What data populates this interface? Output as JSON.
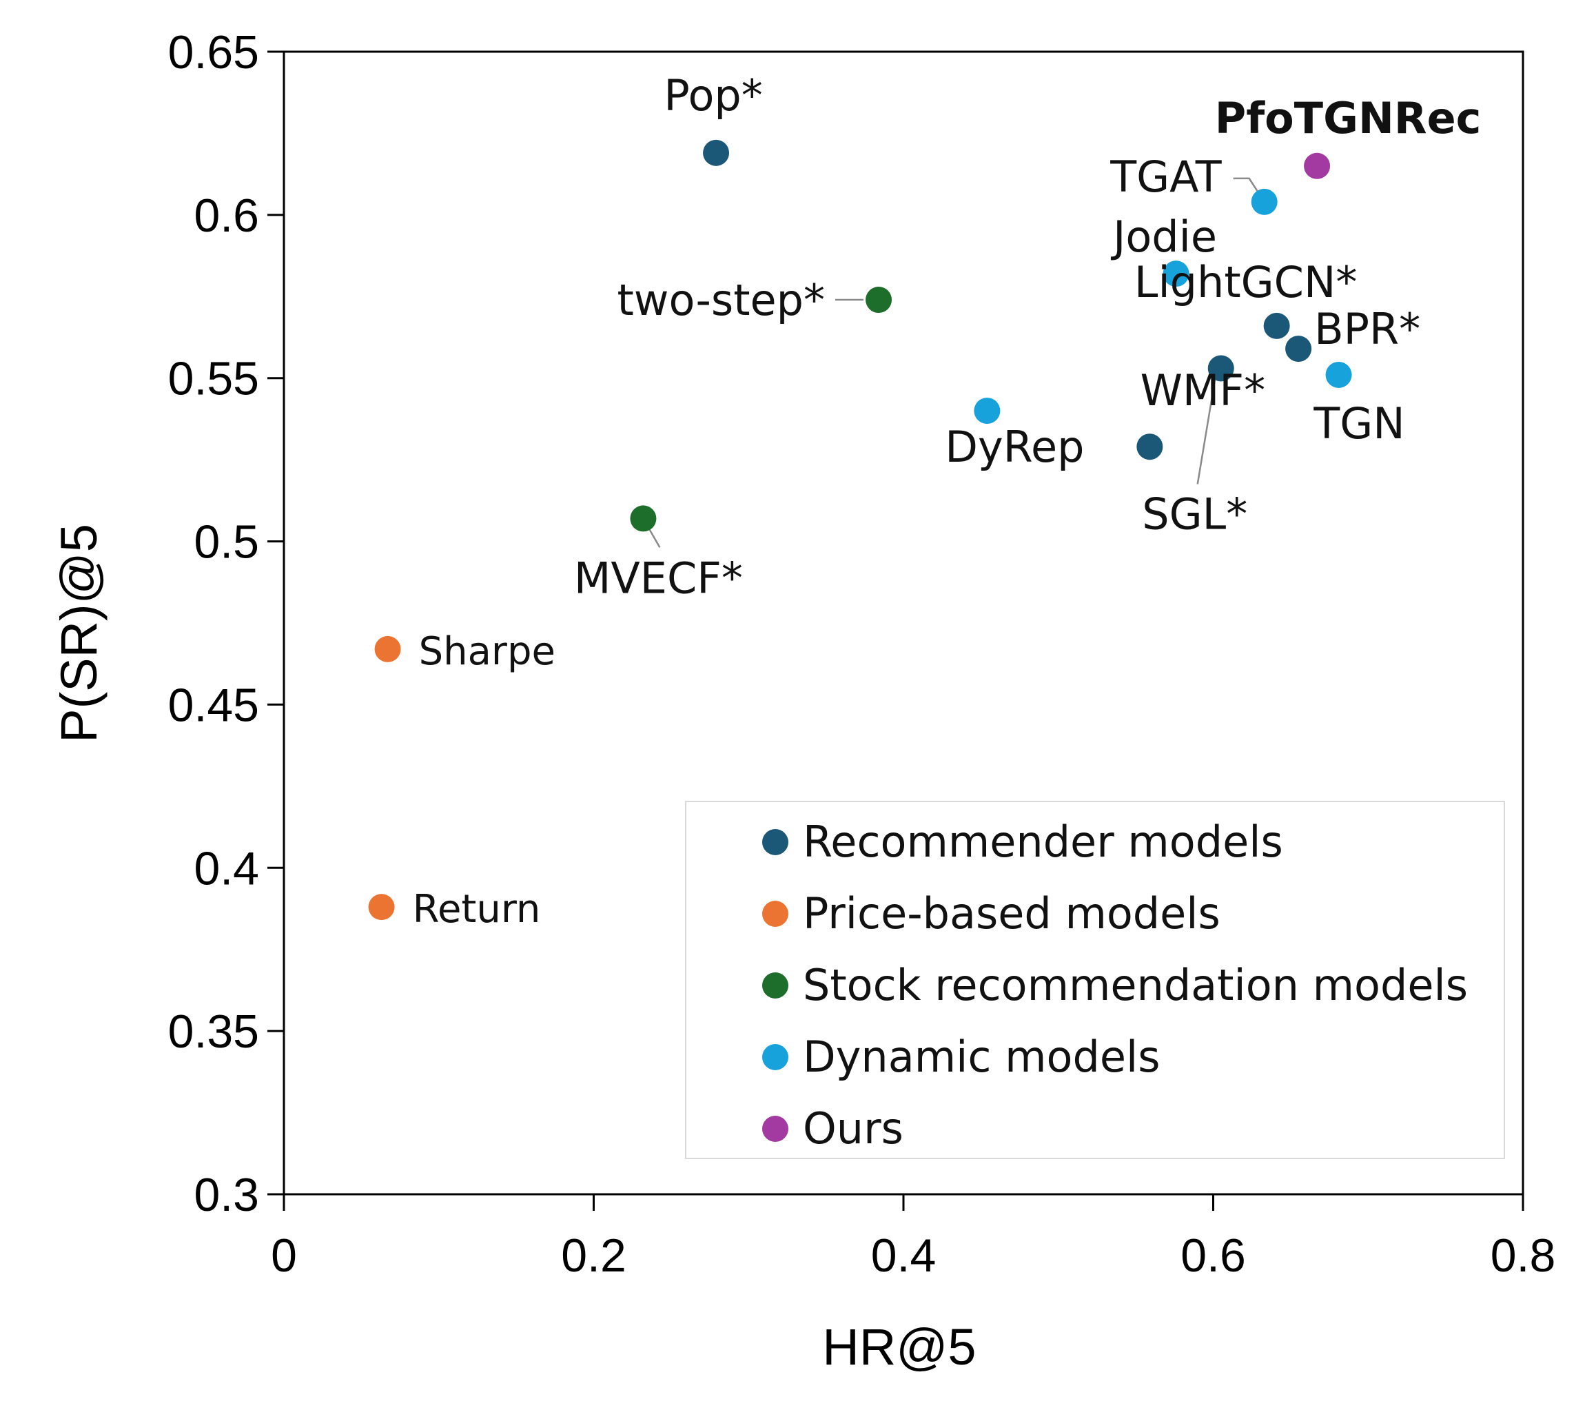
{
  "chart_data": {
    "type": "scatter",
    "xlabel": "HR@5",
    "ylabel": "P(SR)@5",
    "xlim": [
      0,
      0.8
    ],
    "ylim": [
      0.3,
      0.65
    ],
    "xticks": [
      "0",
      "0.2",
      "0.4",
      "0.6",
      "0.8"
    ],
    "yticks": [
      "0.3",
      "0.35",
      "0.4",
      "0.45",
      "0.5",
      "0.55",
      "0.6",
      "0.65"
    ],
    "grid": false,
    "legend_position": "bottom-right",
    "groups": [
      {
        "name": "Recommender models",
        "color": "#1b5877"
      },
      {
        "name": "Price-based models",
        "color": "#ec7433"
      },
      {
        "name": "Stock recommendation models",
        "color": "#1d6d2b"
      },
      {
        "name": "Dynamic models",
        "color": "#17a2dc"
      },
      {
        "name": "Ours",
        "color": "#a23aa1"
      }
    ],
    "points": [
      {
        "label": "Pop*",
        "group": 0,
        "x": 0.279,
        "y": 0.619
      },
      {
        "label": "LightGCN*",
        "group": 0,
        "x": 0.641,
        "y": 0.566
      },
      {
        "label": "BPR*",
        "group": 0,
        "x": 0.655,
        "y": 0.559
      },
      {
        "label": "SGL*",
        "group": 0,
        "x": 0.605,
        "y": 0.553
      },
      {
        "label": "WMF*",
        "group": 0,
        "x": 0.559,
        "y": 0.529
      },
      {
        "label": "Sharpe",
        "group": 1,
        "x": 0.067,
        "y": 0.467
      },
      {
        "label": "Return",
        "group": 1,
        "x": 0.063,
        "y": 0.388
      },
      {
        "label": "two-step*",
        "group": 2,
        "x": 0.384,
        "y": 0.574
      },
      {
        "label": "MVECF*",
        "group": 2,
        "x": 0.232,
        "y": 0.507
      },
      {
        "label": "TGAT",
        "group": 3,
        "x": 0.633,
        "y": 0.604
      },
      {
        "label": "Jodie",
        "group": 3,
        "x": 0.576,
        "y": 0.582
      },
      {
        "label": "TGN",
        "group": 3,
        "x": 0.681,
        "y": 0.551
      },
      {
        "label": "DyRep",
        "group": 3,
        "x": 0.454,
        "y": 0.54
      },
      {
        "label": "PfoTGNRec",
        "group": 4,
        "x": 0.667,
        "y": 0.615
      }
    ]
  }
}
